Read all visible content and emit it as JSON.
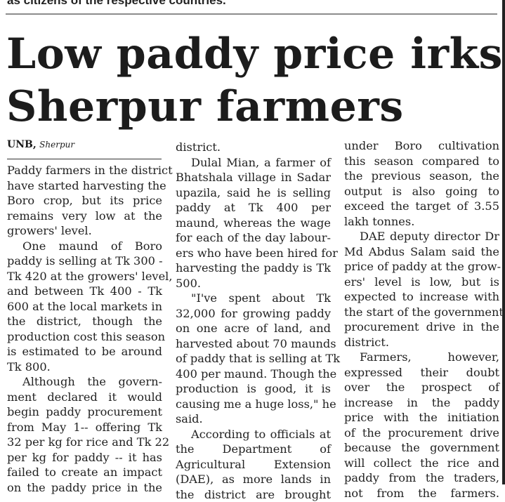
{
  "kicker": "as citizens of the respective countries.",
  "headline": [
    "Low paddy price irks",
    "Sherpur farmers"
  ],
  "byline": {
    "agency": "UNB,",
    "place": "Sherpur"
  },
  "columns": [
    [
      "Paddy farmers in the district",
      "have started harvesting the",
      "Boro crop, but its price",
      "remains very low at the",
      "growers' level.",
      "One maund of Boro",
      "paddy is selling at Tk 300 -",
      "Tk 420 at the growers' level,",
      "and between Tk 400 - Tk",
      "600 at the local markets in",
      "the district, though the",
      "production cost this season",
      "is estimated to be around",
      "Tk 800.",
      "Although the govern-",
      "ment declared it would",
      "begin paddy procurement",
      "from May 1-- offering Tk",
      "32 per kg for rice and Tk 22",
      "per kg for paddy -- it has",
      "failed to create an impact",
      "on the paddy price in the"
    ],
    [
      "district.",
      "Dulal Mian, a farmer of",
      "Bhatshala village in Sadar",
      "upazila, said he is selling",
      "paddy at Tk 400 per",
      "maund, whereas the wage",
      "for each of the day labour-",
      "ers who have been hired for",
      "harvesting the paddy is Tk",
      "500.",
      "\"I've spent about Tk",
      "32,000 for growing paddy",
      "on one acre of land, and",
      "harvested about 70 maunds",
      "of paddy that is selling at Tk",
      "400 per maund. Though the",
      "production is good, it is",
      "causing me a huge loss,\" he",
      "said.",
      "According to officials at",
      "the Department of",
      "Agricultural Extension",
      "(DAE), as more lands in",
      "the district are brought"
    ],
    [
      "under Boro cultivation",
      "this season compared to",
      "the previous season, the",
      "output is also going to",
      "exceed the target of 3.55",
      "lakh tonnes.",
      "DAE deputy director Dr",
      "Md Abdus Salam said the",
      "price of paddy at the grow-",
      "ers' level is low, but is",
      "expected to increase with",
      "the start of the government's",
      "procurement drive in the",
      "district.",
      "Farmers, however,",
      "expressed their doubt",
      "over the prospect of",
      "increase in the paddy",
      "price with the initiation",
      "of the procurement drive",
      "because the government",
      "will collect the rice and",
      "paddy from the traders,",
      "not from the farmers."
    ]
  ]
}
